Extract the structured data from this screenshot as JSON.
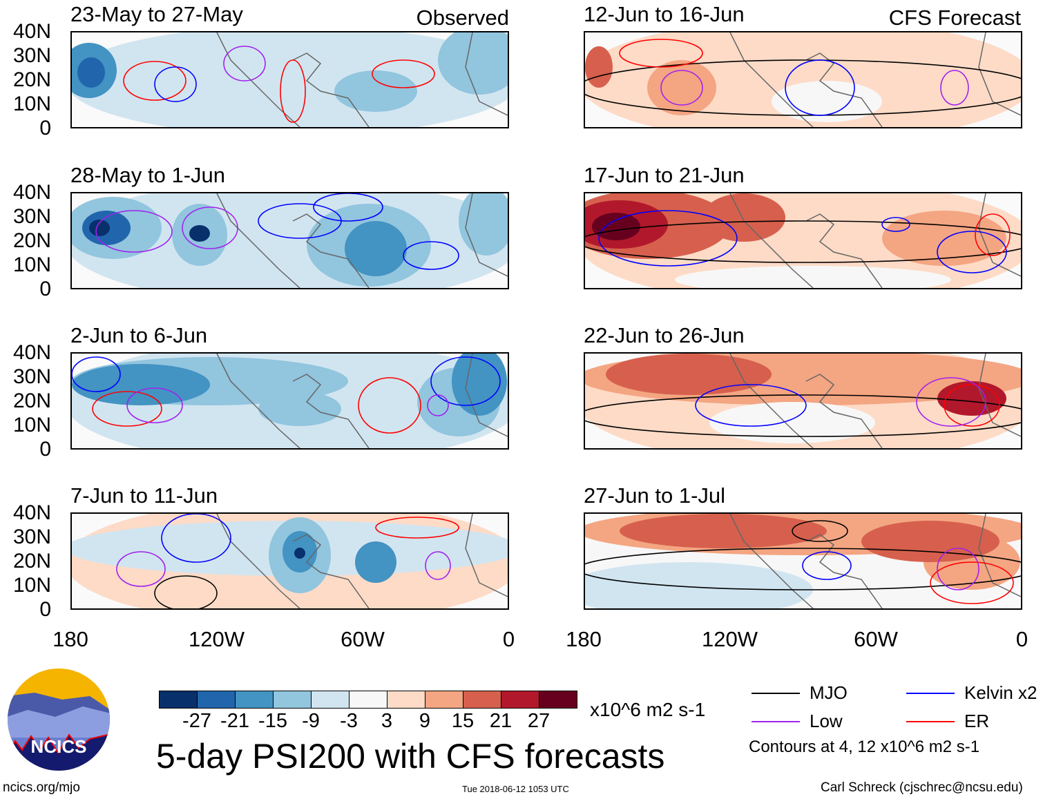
{
  "chart_data": {
    "type": "heatmap",
    "title": "5-day PSI200 with CFS forecasts",
    "columns": [
      {
        "label": "Observed",
        "panels": [
          "23-May to 27-May",
          "28-May to 1-Jun",
          "2-Jun to 6-Jun",
          "7-Jun to 11-Jun"
        ]
      },
      {
        "label": "CFS Forecast",
        "panels": [
          "12-Jun to 16-Jun",
          "17-Jun to 21-Jun",
          "22-Jun to 26-Jun",
          "27-Jun to 1-Jul"
        ]
      }
    ],
    "lat_ticks": [
      "40N",
      "30N",
      "20N",
      "10N",
      "0"
    ],
    "lon_ticks": [
      "180",
      "120W",
      "60W",
      "0"
    ],
    "colorbar": {
      "labels": [
        "-27",
        "-21",
        "-15",
        "-9",
        "-3",
        "3",
        "9",
        "15",
        "21",
        "27"
      ],
      "colors": [
        "#08306b",
        "#2166ac",
        "#4393c3",
        "#92c5de",
        "#d1e5f0",
        "#f7f7f7",
        "#fddbc7",
        "#f4a582",
        "#d6604d",
        "#b2182b",
        "#67001f"
      ],
      "units": "x10^6 m2 s-1"
    },
    "legend": [
      {
        "label": "MJO",
        "color": "#000000"
      },
      {
        "label": "Kelvin x2",
        "color": "#0000ff"
      },
      {
        "label": "Low",
        "color": "#a020f0"
      },
      {
        "label": "ER",
        "color": "#ff0000"
      }
    ],
    "contour_note": "Contours at 4, 12 x10^6 m2 s-1"
  },
  "footer": {
    "logo_text": "NCICS",
    "url": "ncics.org/mjo",
    "timestamp": "Tue 2018-06-12 1053 UTC",
    "author": "Carl Schreck (cjschrec@ncsu.edu)"
  }
}
